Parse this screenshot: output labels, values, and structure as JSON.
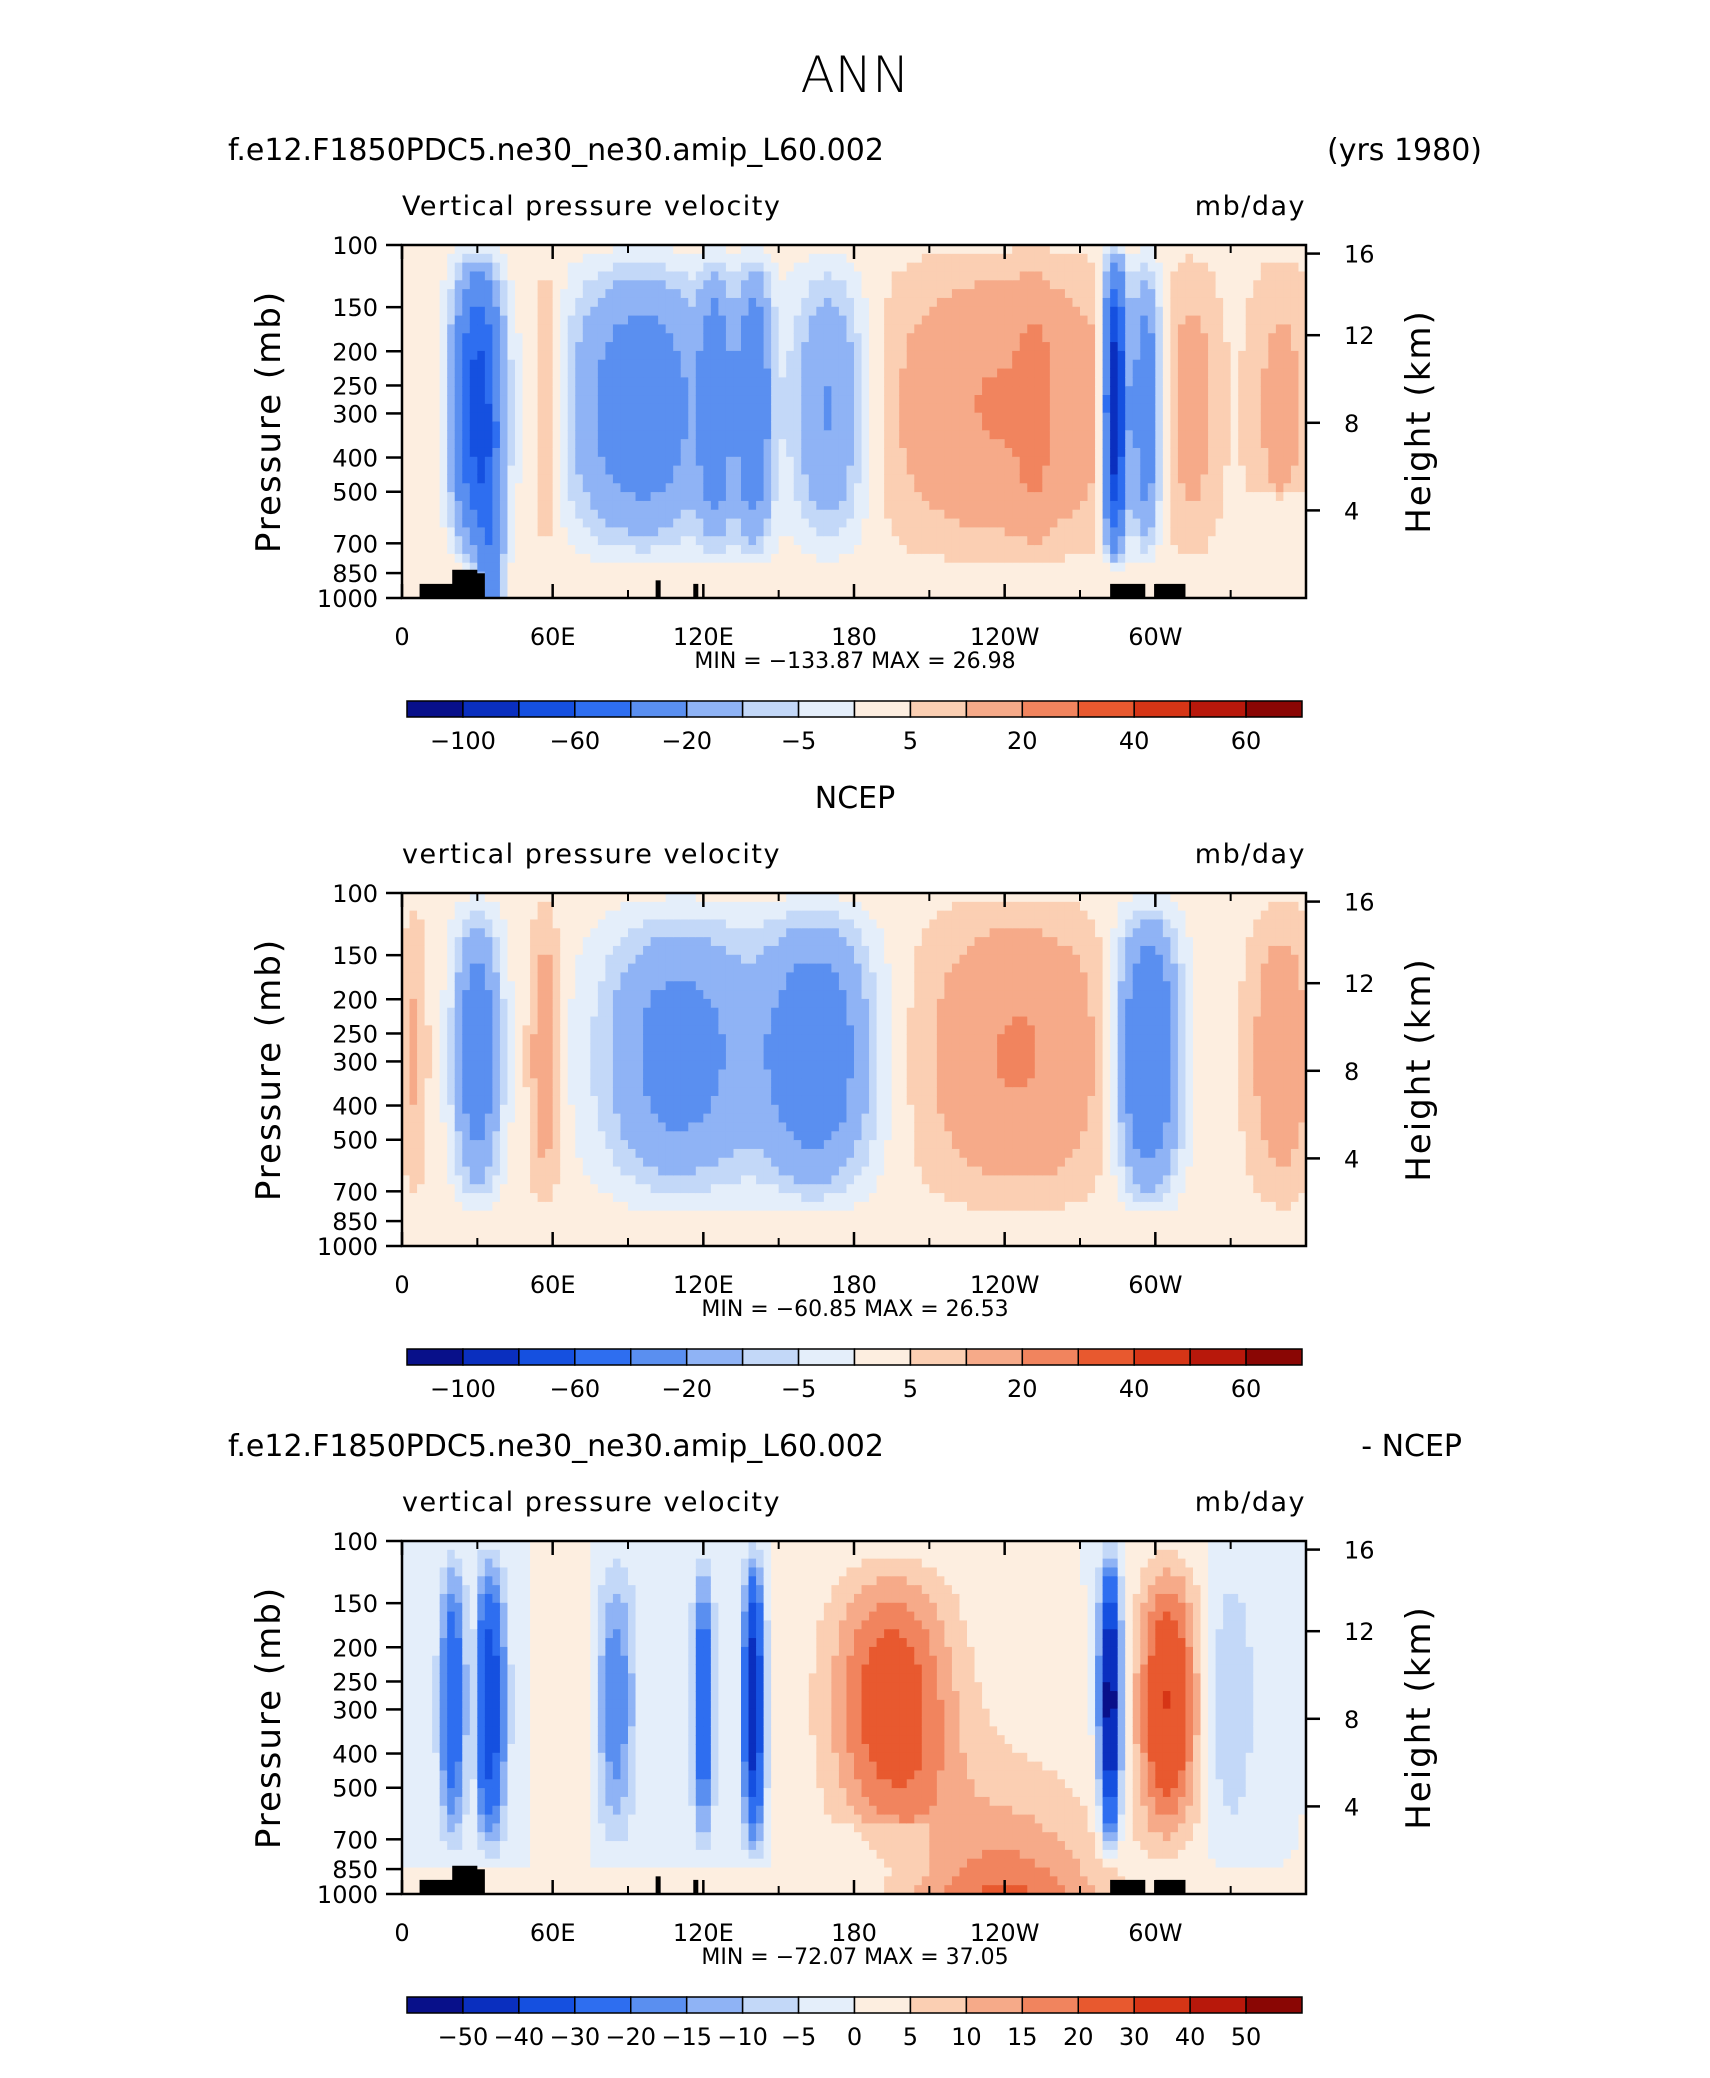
{
  "page_title": "ANN",
  "colors": {
    "scale_abs": [
      "#08108a",
      "#0a2fbf",
      "#1550e0",
      "#2e6ef0",
      "#5a8ff0",
      "#8fb3f5",
      "#c3d8f8",
      "#e4eefa",
      "#fdeee0",
      "#fbcfb3",
      "#f6aa89",
      "#f1845e",
      "#e8592f",
      "#d63516",
      "#b8180b",
      "#8a0604"
    ],
    "scale_diff": [
      "#08108a",
      "#0a2fbf",
      "#1550e0",
      "#2e6ef0",
      "#5a8ff0",
      "#8fb3f5",
      "#c3d8f8",
      "#e4eefa",
      "#fdeee0",
      "#fbcfb3",
      "#f6aa89",
      "#f1845e",
      "#e8592f",
      "#d63516",
      "#b8180b",
      "#8a0604"
    ]
  },
  "panels": [
    {
      "title_left": "f.e12.F1850PDC5.ne30_ne30.amip_L60.002",
      "title_right": "(yrs 1980)",
      "title_center": "",
      "var_label": "Vertical pressure velocity",
      "units": "mb/day",
      "y_label": "Pressure (mb)",
      "y2_label": "Height (km)",
      "min_max": "MIN = −133.87   MAX =   26.98",
      "colorbar_labels": [
        "−100",
        "−60",
        "−20",
        "−5",
        "5",
        "20",
        "40",
        "60"
      ]
    },
    {
      "title_left": "",
      "title_right": "",
      "title_center": "NCEP",
      "var_label": "vertical pressure velocity",
      "units": "mb/day",
      "y_label": "Pressure (mb)",
      "y2_label": "Height (km)",
      "min_max": "MIN = −60.85   MAX =   26.53",
      "colorbar_labels": [
        "−100",
        "−60",
        "−20",
        "−5",
        "5",
        "20",
        "40",
        "60"
      ]
    },
    {
      "title_left": "f.e12.F1850PDC5.ne30_ne30.amip_L60.002",
      "title_right": "- NCEP",
      "title_center": "",
      "var_label": "vertical pressure velocity",
      "units": "mb/day",
      "y_label": "Pressure (mb)",
      "y2_label": "Height (km)",
      "min_max": "MIN = −72.07   MAX =   37.05",
      "colorbar_labels": [
        "−50",
        "−40",
        "−30",
        "−20",
        "−15",
        "−10",
        "−5",
        "0",
        "5",
        "10",
        "15",
        "20",
        "30",
        "40",
        "50"
      ]
    }
  ],
  "chart_data": [
    {
      "type": "heatmap",
      "title": "f.e12.F1850PDC5.ne30_ne30.amip_L60.002",
      "x_ticks": [
        "0",
        "60E",
        "120E",
        "180",
        "120W",
        "60W"
      ],
      "y_ticks": [
        "100",
        "150",
        "200",
        "250",
        "300",
        "400",
        "500",
        "700",
        "850",
        "1000"
      ],
      "y2_ticks": [
        "16",
        "12",
        "8",
        "4"
      ],
      "zmin": -133.87,
      "zmax": 26.98,
      "levels": [
        -100,
        -80,
        -60,
        -40,
        -20,
        -10,
        -5,
        0,
        5,
        10,
        20,
        30,
        40,
        50,
        60
      ]
    },
    {
      "type": "heatmap",
      "title": "NCEP",
      "x_ticks": [
        "0",
        "60E",
        "120E",
        "180",
        "120W",
        "60W"
      ],
      "y_ticks": [
        "100",
        "150",
        "200",
        "250",
        "300",
        "400",
        "500",
        "700",
        "850",
        "1000"
      ],
      "y2_ticks": [
        "16",
        "12",
        "8",
        "4"
      ],
      "zmin": -60.85,
      "zmax": 26.53,
      "levels": [
        -100,
        -80,
        -60,
        -40,
        -20,
        -10,
        -5,
        0,
        5,
        10,
        20,
        30,
        40,
        50,
        60
      ]
    },
    {
      "type": "heatmap",
      "title": "f.e12.F1850PDC5.ne30_ne30.amip_L60.002 - NCEP",
      "x_ticks": [
        "0",
        "60E",
        "120E",
        "180",
        "120W",
        "60W"
      ],
      "y_ticks": [
        "100",
        "150",
        "200",
        "250",
        "300",
        "400",
        "500",
        "700",
        "850",
        "1000"
      ],
      "y2_ticks": [
        "16",
        "12",
        "8",
        "4"
      ],
      "zmin": -72.07,
      "zmax": 37.05,
      "levels": [
        -50,
        -40,
        -30,
        -20,
        -15,
        -10,
        -5,
        0,
        5,
        10,
        15,
        20,
        30,
        40,
        50
      ]
    }
  ]
}
